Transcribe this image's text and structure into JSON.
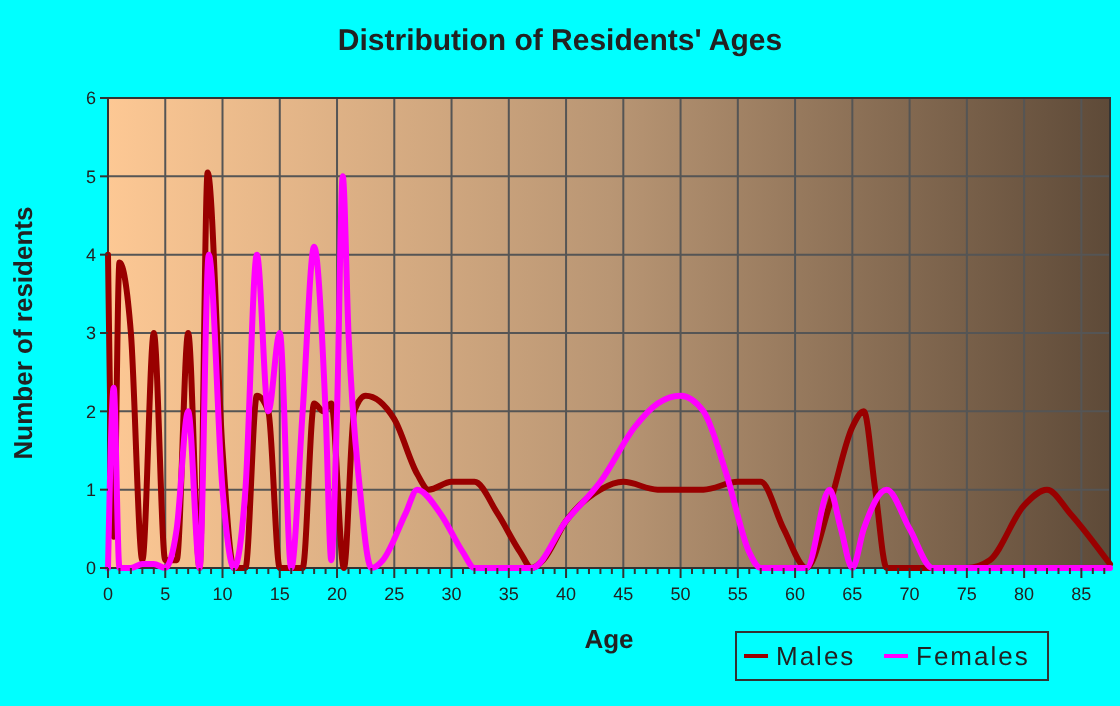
{
  "chart_data": {
    "type": "line",
    "title": "Distribution of Residents' Ages",
    "xlabel": "Age",
    "ylabel": "Number of residents",
    "xlim": [
      0,
      87.5
    ],
    "xticks": [
      0,
      5,
      10,
      15,
      20,
      25,
      30,
      35,
      40,
      45,
      50,
      55,
      60,
      65,
      70,
      75,
      80,
      85
    ],
    "ylim": [
      0,
      6
    ],
    "yticks": [
      0,
      1,
      2,
      3,
      4,
      5,
      6
    ],
    "grid": true,
    "legend": "bottom",
    "marker": "none",
    "line_style": "solid",
    "series": [
      {
        "name": "Males",
        "color": "#990000",
        "x": [
          0,
          0.5,
          1,
          2,
          3,
          4,
          5,
          6,
          7,
          8,
          8.7,
          10,
          11,
          12,
          13,
          14,
          15,
          16,
          17,
          18,
          18.8,
          19.5,
          20.6,
          21.5,
          22.5,
          25,
          27,
          28,
          30,
          32,
          34,
          36,
          37,
          38,
          40,
          43,
          45,
          48,
          52,
          55,
          57,
          59,
          61,
          63,
          65,
          66,
          67,
          68,
          70,
          75,
          77,
          80,
          82,
          84,
          87.5
        ],
        "values": [
          4,
          0.4,
          3.9,
          3,
          0.1,
          3,
          0.1,
          0.1,
          3,
          0,
          5.05,
          1.5,
          0,
          0,
          2.2,
          2,
          0,
          0,
          0,
          2.1,
          2,
          2.1,
          0,
          2,
          2.2,
          1.9,
          1.2,
          1,
          1.1,
          1.1,
          0.7,
          0.2,
          0,
          0.1,
          0.6,
          1,
          1.1,
          1,
          1,
          1.1,
          1.1,
          0.5,
          0,
          0.8,
          1.8,
          2,
          1,
          0,
          0,
          0,
          0.1,
          0.8,
          1,
          0.7,
          0.05
        ]
      },
      {
        "name": "Females",
        "color": "#ff00ff",
        "x": [
          0,
          0.5,
          1,
          2,
          3,
          4,
          5,
          6,
          7,
          8,
          8.8,
          10,
          11,
          12,
          13,
          14,
          15,
          16,
          17,
          18,
          19,
          19.5,
          20,
          20.5,
          21,
          22,
          23,
          24,
          26,
          27,
          29,
          31,
          32,
          37,
          40,
          43,
          46,
          48,
          50,
          52,
          54,
          56,
          57,
          61,
          63,
          64,
          65,
          66,
          68,
          70,
          72,
          87.5
        ],
        "values": [
          0,
          2.3,
          0,
          0,
          0.05,
          0.05,
          0,
          0.5,
          2,
          0,
          4,
          1,
          0,
          1,
          4,
          2,
          3,
          0,
          2,
          4.1,
          2,
          0.1,
          2,
          5,
          3,
          1,
          0,
          0.1,
          0.7,
          1,
          0.7,
          0.2,
          0,
          0,
          0.6,
          1.1,
          1.8,
          2.1,
          2.2,
          2,
          1.2,
          0.2,
          0,
          0,
          1,
          0.5,
          0,
          0.5,
          1,
          0.5,
          0,
          0
        ]
      }
    ]
  }
}
